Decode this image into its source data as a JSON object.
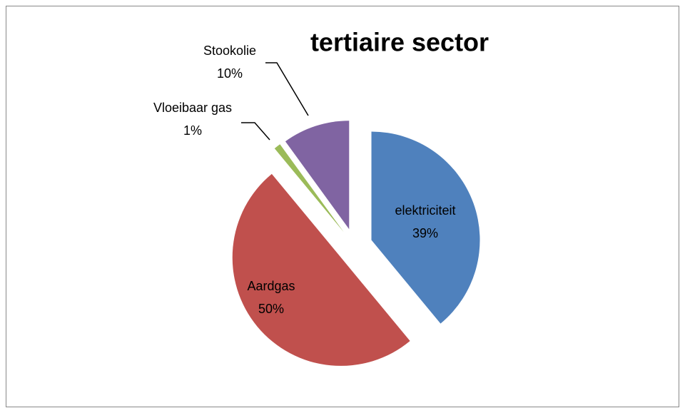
{
  "chart_data": {
    "type": "pie",
    "title": "tertiaire sector",
    "categories": [
      "elektriciteit",
      "Aardgas",
      "Vloeibaar gas",
      "Stookolie"
    ],
    "values": [
      39,
      50,
      1,
      10
    ],
    "value_labels": [
      "39%",
      "50%",
      "1%",
      "10%"
    ],
    "colors": [
      "#4f81bd",
      "#c0504d",
      "#9bbb59",
      "#8064a2"
    ]
  }
}
